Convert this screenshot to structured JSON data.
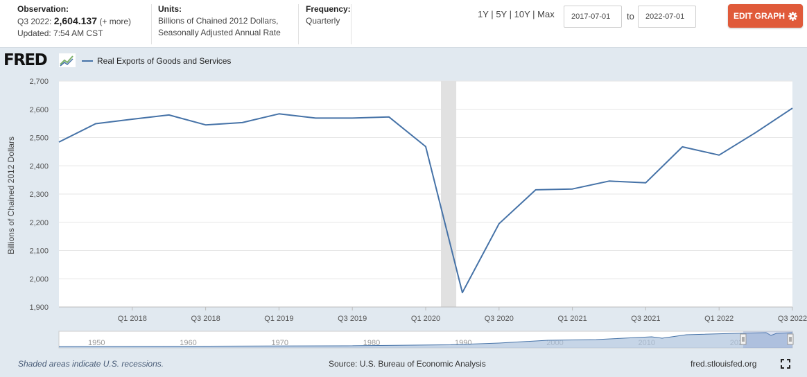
{
  "header": {
    "observation_label": "Observation:",
    "observation_period": "Q3 2022:",
    "observation_value": "2,604.137",
    "observation_more": "(+ more)",
    "updated": "Updated: 7:54 AM CST",
    "units_label": "Units:",
    "units_line1": "Billions of Chained 2012 Dollars,",
    "units_line2": "Seasonally Adjusted Annual Rate",
    "frequency_label": "Frequency:",
    "frequency_value": "Quarterly",
    "ranges": [
      "1Y",
      "5Y",
      "10Y",
      "Max"
    ],
    "range_separator": "|",
    "start_date": "2017-07-01",
    "to_label": "to",
    "end_date": "2022-07-01",
    "edit_button": "EDIT GRAPH"
  },
  "logo_text": "FRED",
  "footer": {
    "recession_note": "Shaded areas indicate U.S. recessions.",
    "source": "Source: U.S. Bureau of Economic Analysis",
    "site": "fred.stlouisfed.org"
  },
  "colors": {
    "series": "#4572a7",
    "recession": "#e1e1e1",
    "accent": "#e05a3a",
    "navigator_fill": "#aec3dd"
  },
  "chart_data": {
    "type": "line",
    "ylabel": "Billions of Chained 2012 Dollars",
    "ylim": [
      1900,
      2700
    ],
    "yticks": [
      1900,
      2000,
      2100,
      2200,
      2300,
      2400,
      2500,
      2600,
      2700
    ],
    "x_ticks": [
      "Q1 2018",
      "Q3 2018",
      "Q1 2019",
      "Q3 2019",
      "Q1 2020",
      "Q3 2020",
      "Q1 2021",
      "Q3 2021",
      "Q1 2022",
      "Q3 2022"
    ],
    "recession": [
      "Q1 2020",
      "Q2 2020"
    ],
    "series": [
      {
        "name": "Real Exports of Goods and Services",
        "x": [
          "Q3 2017",
          "Q4 2017",
          "Q1 2018",
          "Q2 2018",
          "Q3 2018",
          "Q4 2018",
          "Q1 2019",
          "Q2 2019",
          "Q3 2019",
          "Q4 2019",
          "Q1 2020",
          "Q2 2020",
          "Q3 2020",
          "Q4 2020",
          "Q1 2021",
          "Q2 2021",
          "Q3 2021",
          "Q4 2021",
          "Q1 2022",
          "Q2 2022",
          "Q3 2022"
        ],
        "values": [
          2484,
          2549,
          2565,
          2580,
          2545,
          2553,
          2584,
          2569,
          2569,
          2573,
          2468,
          1951,
          2195,
          2315,
          2318,
          2346,
          2340,
          2467,
          2438,
          2518,
          2604.137
        ]
      }
    ],
    "navigator": {
      "year_labels": [
        "1950",
        "1960",
        "1970",
        "1980",
        "1990",
        "2000",
        "2010",
        "2020"
      ]
    }
  }
}
